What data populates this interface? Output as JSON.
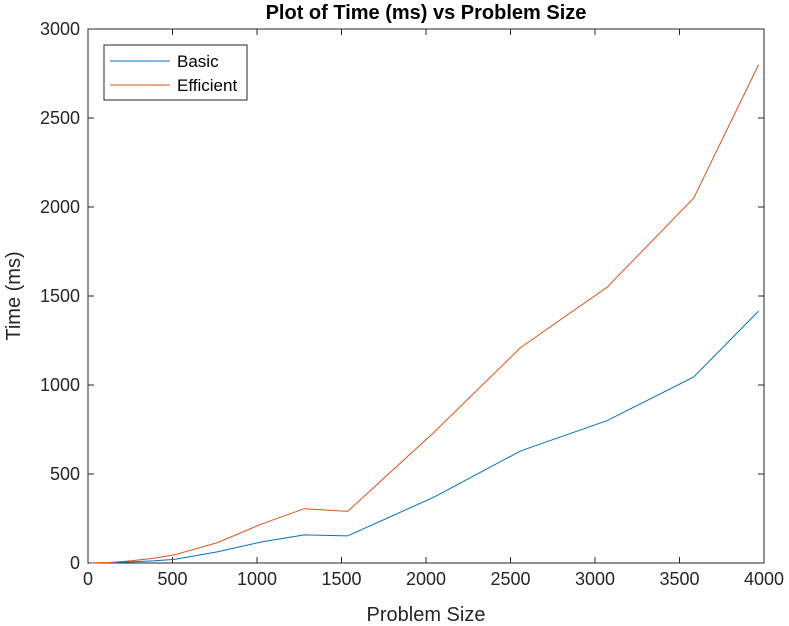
{
  "chart_data": {
    "type": "line",
    "title": "Plot of Time (ms) vs Problem Size",
    "xlabel": "Problem Size",
    "ylabel": "Time (ms)",
    "xlim": [
      0,
      4000
    ],
    "ylim": [
      0,
      3000
    ],
    "xticks": [
      0,
      500,
      1000,
      1500,
      2000,
      2500,
      3000,
      3500,
      4000
    ],
    "yticks": [
      0,
      500,
      1000,
      1500,
      2000,
      2500,
      3000
    ],
    "grid": false,
    "legend_position": "top-left",
    "x": [
      16,
      64,
      128,
      256,
      384,
      512,
      768,
      1024,
      1280,
      1536,
      2048,
      2560,
      3072,
      3584,
      3968
    ],
    "series": [
      {
        "name": "Basic",
        "color": "#0072BD",
        "values": [
          0.2,
          0.5,
          1.5,
          6,
          12,
          20,
          63,
          118,
          158,
          152,
          370,
          630,
          800,
          1045,
          1415
        ]
      },
      {
        "name": "Efficient",
        "color": "#D95319",
        "values": [
          0.3,
          1,
          3,
          13,
          26,
          46,
          115,
          218,
          305,
          290,
          735,
          1210,
          1550,
          2050,
          2800
        ]
      }
    ]
  }
}
